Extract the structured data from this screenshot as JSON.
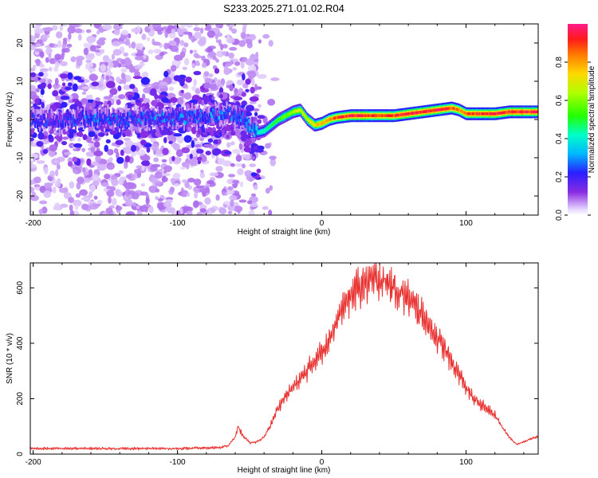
{
  "title": "S233.2025.271.01.02.R04",
  "chart_data": [
    {
      "type": "heatmap",
      "xlabel": "Height of straight line (km)",
      "ylabel": "Frequency (Hz)",
      "xlim": [
        -202,
        150
      ],
      "ylim": [
        -25,
        25
      ],
      "xticks": [
        -200,
        -100,
        0,
        100
      ],
      "xtick_labels": [
        "-200",
        "-100",
        "0",
        "100"
      ],
      "yticks": [
        -20,
        -10,
        0,
        10,
        20
      ],
      "ytick_labels": [
        "-20",
        "-10",
        "0",
        "10",
        "20"
      ],
      "colorbar": {
        "label": "Normalized spectral amplitude",
        "range": [
          0,
          1
        ],
        "ticks": [
          0.0,
          0.2,
          0.4,
          0.6,
          0.8
        ],
        "tick_labels": [
          "0.0",
          "0.2",
          "0.4",
          "0.6",
          "0.8"
        ]
      },
      "ridge": {
        "x": [
          -200,
          -180,
          -160,
          -140,
          -120,
          -100,
          -80,
          -65,
          -55,
          -45,
          -40,
          -35,
          -30,
          -25,
          -20,
          -15,
          -10,
          -5,
          0,
          5,
          10,
          20,
          30,
          40,
          50,
          60,
          70,
          80,
          90,
          95,
          100,
          110,
          120,
          130,
          140,
          150
        ],
        "y": [
          0,
          -0.5,
          0.5,
          0,
          0.5,
          0.3,
          1,
          1.5,
          0.5,
          -3.5,
          -3,
          -1.5,
          0,
          1,
          2,
          2.5,
          0,
          -1.5,
          -1,
          0,
          0.5,
          1,
          1,
          1,
          1,
          1.5,
          2,
          2.5,
          3,
          2.5,
          1.5,
          1.5,
          1.5,
          2,
          2,
          2
        ],
        "amplitude": [
          0.25,
          0.25,
          0.3,
          0.28,
          0.3,
          0.3,
          0.3,
          0.32,
          0.3,
          0.4,
          0.45,
          0.5,
          0.55,
          0.6,
          0.65,
          0.7,
          0.7,
          0.75,
          0.8,
          0.85,
          0.9,
          0.95,
          0.95,
          0.9,
          0.92,
          0.95,
          0.95,
          0.95,
          0.9,
          0.85,
          0.9,
          0.92,
          0.95,
          0.95,
          0.95,
          0.95
        ]
      }
    },
    {
      "type": "line",
      "xlabel": "Height of straight line (km)",
      "ylabel": "SNR (10 * v/v)",
      "xlim": [
        -202,
        150
      ],
      "ylim": [
        0,
        690
      ],
      "xticks": [
        -200,
        -100,
        0,
        100
      ],
      "xtick_labels": [
        "-200",
        "-100",
        "0",
        "100"
      ],
      "yticks": [
        0,
        200,
        400,
        600
      ],
      "ytick_labels": [
        "0",
        "200",
        "400",
        "600"
      ],
      "color": "#e8302f",
      "series": [
        {
          "name": "SNR",
          "x": [
            -202,
            -180,
            -160,
            -140,
            -120,
            -100,
            -80,
            -70,
            -65,
            -60,
            -58,
            -55,
            -50,
            -45,
            -40,
            -35,
            -30,
            -25,
            -20,
            -15,
            -10,
            -5,
            0,
            5,
            10,
            15,
            20,
            25,
            30,
            35,
            40,
            45,
            50,
            55,
            60,
            65,
            70,
            75,
            80,
            85,
            90,
            95,
            100,
            105,
            110,
            115,
            120,
            125,
            130,
            135,
            140,
            145,
            150
          ],
          "values": [
            20,
            20,
            20,
            20,
            20,
            20,
            22,
            25,
            30,
            60,
            100,
            70,
            40,
            45,
            60,
            110,
            170,
            210,
            240,
            270,
            300,
            340,
            370,
            420,
            470,
            530,
            570,
            600,
            615,
            625,
            630,
            620,
            600,
            580,
            560,
            530,
            500,
            460,
            420,
            380,
            330,
            290,
            240,
            200,
            180,
            160,
            140,
            100,
            60,
            35,
            45,
            55,
            65
          ]
        }
      ]
    }
  ]
}
